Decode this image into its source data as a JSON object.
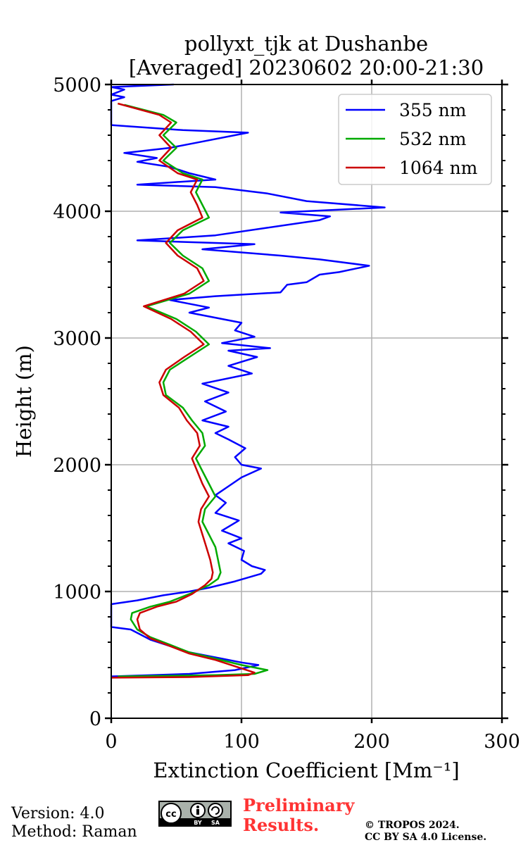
{
  "chart_data": {
    "type": "line",
    "title_line1": "pollyxt_tjk at Dushanbe",
    "title_line2": "[Averaged] 20230602 20:00-21:30",
    "xlabel": "Extinction Coefficient [Mm⁻¹]",
    "ylabel": "Height (m)",
    "xlim": [
      0,
      300
    ],
    "ylim": [
      0,
      5000
    ],
    "xticks": [
      0,
      100,
      200,
      300
    ],
    "yticks": [
      0,
      1000,
      2000,
      3000,
      4000,
      5000
    ],
    "grid": true,
    "legend_position": "top-right",
    "series": [
      {
        "name": "355 nm",
        "color": "#0000ff",
        "points": [
          [
            0,
            330
          ],
          [
            60,
            350
          ],
          [
            95,
            380
          ],
          [
            113,
            420
          ],
          [
            100,
            440
          ],
          [
            85,
            470
          ],
          [
            60,
            520
          ],
          [
            45,
            570
          ],
          [
            30,
            620
          ],
          [
            15,
            700
          ],
          [
            0,
            720
          ],
          [
            0,
            900
          ],
          [
            20,
            930
          ],
          [
            40,
            970
          ],
          [
            60,
            1000
          ],
          [
            75,
            1030
          ],
          [
            95,
            1080
          ],
          [
            115,
            1140
          ],
          [
            118,
            1170
          ],
          [
            108,
            1200
          ],
          [
            100,
            1250
          ],
          [
            102,
            1320
          ],
          [
            90,
            1380
          ],
          [
            100,
            1420
          ],
          [
            85,
            1480
          ],
          [
            98,
            1560
          ],
          [
            80,
            1620
          ],
          [
            88,
            1700
          ],
          [
            80,
            1760
          ],
          [
            90,
            1830
          ],
          [
            100,
            1900
          ],
          [
            115,
            1970
          ],
          [
            100,
            2000
          ],
          [
            95,
            2060
          ],
          [
            103,
            2130
          ],
          [
            90,
            2200
          ],
          [
            80,
            2250
          ],
          [
            90,
            2300
          ],
          [
            70,
            2350
          ],
          [
            88,
            2420
          ],
          [
            72,
            2500
          ],
          [
            90,
            2570
          ],
          [
            70,
            2640
          ],
          [
            108,
            2720
          ],
          [
            90,
            2780
          ],
          [
            112,
            2850
          ],
          [
            90,
            2900
          ],
          [
            122,
            2920
          ],
          [
            85,
            2960
          ],
          [
            110,
            3010
          ],
          [
            95,
            3060
          ],
          [
            100,
            3120
          ],
          [
            60,
            3200
          ],
          [
            75,
            3240
          ],
          [
            45,
            3300
          ],
          [
            80,
            3330
          ],
          [
            130,
            3360
          ],
          [
            135,
            3420
          ],
          [
            150,
            3440
          ],
          [
            160,
            3500
          ],
          [
            175,
            3520
          ],
          [
            198,
            3570
          ],
          [
            160,
            3620
          ],
          [
            130,
            3650
          ],
          [
            70,
            3700
          ],
          [
            110,
            3740
          ],
          [
            20,
            3770
          ],
          [
            80,
            3810
          ],
          [
            120,
            3870
          ],
          [
            160,
            3930
          ],
          [
            168,
            3960
          ],
          [
            130,
            3990
          ],
          [
            210,
            4030
          ],
          [
            150,
            4080
          ],
          [
            120,
            4140
          ],
          [
            80,
            4190
          ],
          [
            20,
            4210
          ],
          [
            80,
            4250
          ],
          [
            60,
            4300
          ],
          [
            45,
            4350
          ],
          [
            20,
            4390
          ],
          [
            35,
            4420
          ],
          [
            10,
            4460
          ],
          [
            45,
            4500
          ],
          [
            65,
            4540
          ],
          [
            105,
            4620
          ],
          [
            55,
            4640
          ],
          [
            0,
            4680
          ],
          [
            0,
            4870
          ],
          [
            10,
            4900
          ],
          [
            0,
            4920
          ],
          [
            10,
            4960
          ],
          [
            0,
            4980
          ],
          [
            48,
            5000
          ]
        ]
      },
      {
        "name": "532 nm",
        "color": "#00aa00",
        "points": [
          [
            5,
            330
          ],
          [
            80,
            340
          ],
          [
            110,
            350
          ],
          [
            120,
            380
          ],
          [
            100,
            420
          ],
          [
            80,
            470
          ],
          [
            60,
            520
          ],
          [
            45,
            580
          ],
          [
            30,
            640
          ],
          [
            20,
            700
          ],
          [
            15,
            780
          ],
          [
            16,
            830
          ],
          [
            30,
            880
          ],
          [
            45,
            920
          ],
          [
            60,
            980
          ],
          [
            75,
            1050
          ],
          [
            82,
            1100
          ],
          [
            84,
            1150
          ],
          [
            82,
            1250
          ],
          [
            80,
            1350
          ],
          [
            75,
            1450
          ],
          [
            70,
            1550
          ],
          [
            72,
            1650
          ],
          [
            80,
            1750
          ],
          [
            75,
            1850
          ],
          [
            70,
            1950
          ],
          [
            65,
            2050
          ],
          [
            72,
            2150
          ],
          [
            70,
            2250
          ],
          [
            62,
            2350
          ],
          [
            55,
            2450
          ],
          [
            42,
            2550
          ],
          [
            40,
            2650
          ],
          [
            45,
            2750
          ],
          [
            60,
            2850
          ],
          [
            75,
            2950
          ],
          [
            65,
            3050
          ],
          [
            50,
            3150
          ],
          [
            27,
            3250
          ],
          [
            60,
            3350
          ],
          [
            75,
            3450
          ],
          [
            70,
            3550
          ],
          [
            55,
            3650
          ],
          [
            45,
            3750
          ],
          [
            55,
            3850
          ],
          [
            75,
            3950
          ],
          [
            70,
            4050
          ],
          [
            65,
            4150
          ],
          [
            70,
            4250
          ],
          [
            55,
            4300
          ],
          [
            40,
            4400
          ],
          [
            50,
            4500
          ],
          [
            40,
            4600
          ],
          [
            50,
            4700
          ],
          [
            40,
            4760
          ],
          [
            10,
            4840
          ]
        ]
      },
      {
        "name": "1064 nm",
        "color": "#cc0000",
        "points": [
          [
            0,
            320
          ],
          [
            60,
            325
          ],
          [
            105,
            340
          ],
          [
            110,
            360
          ],
          [
            95,
            410
          ],
          [
            80,
            460
          ],
          [
            60,
            510
          ],
          [
            45,
            570
          ],
          [
            30,
            630
          ],
          [
            22,
            700
          ],
          [
            20,
            780
          ],
          [
            22,
            830
          ],
          [
            35,
            880
          ],
          [
            50,
            920
          ],
          [
            62,
            980
          ],
          [
            72,
            1050
          ],
          [
            77,
            1100
          ],
          [
            78,
            1150
          ],
          [
            76,
            1250
          ],
          [
            73,
            1350
          ],
          [
            70,
            1450
          ],
          [
            67,
            1550
          ],
          [
            69,
            1650
          ],
          [
            75,
            1750
          ],
          [
            70,
            1850
          ],
          [
            66,
            1950
          ],
          [
            62,
            2050
          ],
          [
            68,
            2150
          ],
          [
            66,
            2250
          ],
          [
            58,
            2350
          ],
          [
            52,
            2450
          ],
          [
            40,
            2550
          ],
          [
            37,
            2650
          ],
          [
            42,
            2750
          ],
          [
            56,
            2850
          ],
          [
            71,
            2950
          ],
          [
            61,
            3050
          ],
          [
            46,
            3150
          ],
          [
            25,
            3250
          ],
          [
            56,
            3350
          ],
          [
            71,
            3450
          ],
          [
            66,
            3550
          ],
          [
            51,
            3650
          ],
          [
            42,
            3750
          ],
          [
            51,
            3850
          ],
          [
            70,
            3950
          ],
          [
            66,
            4050
          ],
          [
            61,
            4150
          ],
          [
            66,
            4250
          ],
          [
            51,
            4300
          ],
          [
            37,
            4400
          ],
          [
            46,
            4500
          ],
          [
            37,
            4600
          ],
          [
            46,
            4700
          ],
          [
            37,
            4760
          ],
          [
            5,
            4850
          ]
        ]
      }
    ]
  },
  "footer": {
    "version": "Version: 4.0",
    "method": "Method: Raman",
    "preliminary_line1": "Preliminary",
    "preliminary_line2": "Results.",
    "copyright_line1": "© TROPOS 2024.",
    "copyright_line2": "CC BY SA 4.0 License.",
    "badge": {
      "cc": "cc",
      "by": "BY",
      "sa": "SA"
    }
  }
}
